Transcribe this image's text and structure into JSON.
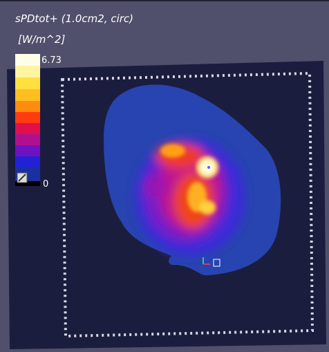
{
  "title": "sPDtot+ (1.0cm2, circ)",
  "unit": "[W/m^2]",
  "colorbar": {
    "max": 6.73,
    "min": 0
  }
}
